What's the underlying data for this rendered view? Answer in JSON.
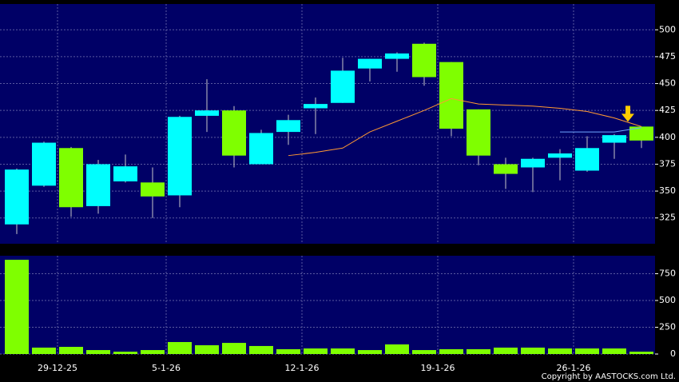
{
  "chart_data": [
    {
      "type": "candlestick",
      "categories": [
        null,
        null,
        "29-12-25",
        null,
        null,
        null,
        "5-1-26",
        null,
        null,
        null,
        null,
        "12-1-26",
        null,
        null,
        null,
        null,
        "19-1-26",
        null,
        null,
        null,
        null,
        "26-1-26",
        null,
        null
      ],
      "open": [
        319,
        355,
        390,
        336,
        359,
        358,
        346,
        420,
        425,
        375,
        405,
        427,
        432,
        464,
        473,
        487,
        470,
        426,
        375,
        372,
        381,
        369,
        395,
        410
      ],
      "high": [
        371,
        396,
        391,
        379,
        384,
        372,
        420,
        454,
        429,
        407,
        421,
        437,
        474,
        473,
        479,
        488,
        470,
        426,
        381,
        381,
        389,
        401,
        403,
        410
      ],
      "low": [
        310,
        354,
        326,
        329,
        358,
        325,
        335,
        405,
        372,
        375,
        393,
        403,
        432,
        452,
        461,
        448,
        401,
        374,
        352,
        349,
        360,
        368,
        380,
        390
      ],
      "close": [
        370,
        395,
        335,
        375,
        373,
        345,
        419,
        425,
        383,
        404,
        416,
        431,
        462,
        473,
        478,
        456,
        408,
        383,
        366,
        380,
        385,
        390,
        402,
        397
      ],
      "up_color": "#00ffff",
      "down_color": "#7fff00",
      "lines": [
        {
          "color": "#ff9933",
          "values": [
            null,
            null,
            null,
            null,
            null,
            null,
            null,
            null,
            null,
            null,
            383,
            386,
            390,
            405,
            415,
            425,
            436,
            431,
            430,
            429,
            427,
            424,
            418,
            410
          ]
        },
        {
          "color": "#6fa8ff",
          "values": [
            null,
            null,
            null,
            null,
            null,
            null,
            null,
            null,
            null,
            null,
            null,
            null,
            null,
            null,
            null,
            null,
            null,
            null,
            null,
            null,
            405,
            405,
            405,
            409
          ]
        }
      ],
      "ylim": [
        301,
        524
      ],
      "yticks": [
        325,
        350,
        375,
        400,
        425,
        450,
        475,
        500
      ],
      "grid": true
    },
    {
      "type": "bar",
      "values": [
        880,
        60,
        67,
        37,
        22,
        37,
        112,
        82,
        104,
        75,
        45,
        52,
        52,
        37,
        90,
        37,
        45,
        45,
        60,
        60,
        52,
        52,
        52,
        22
      ],
      "color": "#7fff00",
      "ylim": [
        0,
        918
      ],
      "yticks": [
        0,
        250,
        500,
        750
      ],
      "grid": true
    }
  ],
  "footer": "Copyright by AASTOCKS.com Ltd."
}
